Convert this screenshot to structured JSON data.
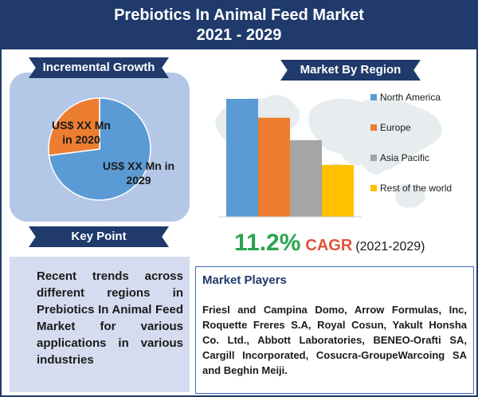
{
  "header": {
    "title_line1": "Prebiotics In Animal Feed Market",
    "title_line2": "2021 - 2029"
  },
  "incremental": {
    "heading": "Incremental Growth",
    "slice_2020_label_line1": "US$ XX Mn",
    "slice_2020_label_line2": "in 2020",
    "slice_2029_label_line1": "US$ XX Mn in",
    "slice_2029_label_line2": "2029"
  },
  "key_point": {
    "heading": "Key Point",
    "text": "Recent trends across different regions in Prebiotics In Animal Feed Market for various applications in various industries"
  },
  "region": {
    "heading": "Market By Region"
  },
  "cagr": {
    "value": "11.2%",
    "label": "CAGR",
    "period": "(2021-2029)"
  },
  "players": {
    "heading": "Market Players",
    "text": "Friesl and Campina Domo, Arrow Formulas, Inc, Roquette Freres S.A, Royal Cosun, Yakult Honsha Co. Ltd., Abbott Laboratories, BENEO-Orafti SA, Cargill Incorporated, Cosucra-GroupeWarcoing SA and Beghin Meiji."
  },
  "colors": {
    "header_bg": "#1f3a6b",
    "pie_2029": "#5b9bd5",
    "pie_2020": "#ed7d31",
    "north_america": "#5b9bd5",
    "europe": "#ed7d31",
    "asia_pacific": "#a5a5a5",
    "rest_of_world": "#ffc000",
    "cagr_value": "#2aa44f",
    "cagr_label": "#e0533a"
  },
  "chart_data": [
    {
      "type": "pie",
      "labels": [
        "US$ XX Mn in 2029",
        "US$ XX Mn in 2020"
      ],
      "values": [
        73,
        27
      ]
    },
    {
      "type": "bar",
      "categories": [
        "North America",
        "Europe",
        "Asia Pacific",
        "Rest of the world"
      ],
      "values": [
        100,
        84,
        65,
        44
      ],
      "legend": [
        "North America",
        "Europe",
        "Asia Pacific",
        "Rest of the world"
      ],
      "ylim": [
        0,
        100
      ],
      "legend_position": "right"
    }
  ]
}
